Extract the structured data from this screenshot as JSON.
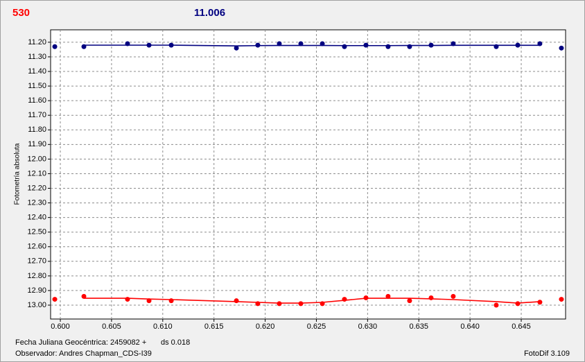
{
  "header": {
    "left_value": "530",
    "right_value": "11.006"
  },
  "footer": {
    "date_label": "Fecha Juliana Geocéntrica: 2459082 +",
    "ds": "ds 0.018",
    "observer": "Observador: Andres Chapman_CDS-I39",
    "software": "FotoDif 3.109"
  },
  "chart_data": {
    "type": "scatter",
    "y_label": "Fotometría absoluta",
    "grid": true,
    "x": [
      0.59946,
      0.6023,
      0.60656,
      0.60866,
      0.61083,
      0.61719,
      0.61928,
      0.62138,
      0.62348,
      0.62558,
      0.62774,
      0.62984,
      0.632,
      0.6341,
      0.6362,
      0.63836,
      0.64256,
      0.64466,
      0.64682,
      0.64892
    ],
    "series": [
      {
        "color": "#000080",
        "values": [
          11.23,
          11.23,
          11.21,
          11.22,
          11.22,
          11.24,
          11.22,
          11.21,
          11.21,
          11.21,
          11.23,
          11.22,
          11.23,
          11.23,
          11.22,
          11.21,
          11.23,
          11.22,
          11.21,
          11.24
        ],
        "fit": [
          null,
          11.22,
          11.22,
          11.22,
          11.22,
          11.225,
          11.223,
          11.222,
          11.222,
          11.222,
          11.223,
          11.223,
          11.223,
          11.222,
          11.222,
          11.221,
          11.221,
          11.221,
          11.221,
          null
        ]
      },
      {
        "color": "#ff0000",
        "values": [
          12.96,
          12.94,
          12.96,
          12.97,
          12.97,
          12.97,
          12.99,
          12.99,
          12.99,
          12.99,
          12.96,
          12.95,
          12.94,
          12.97,
          12.95,
          12.94,
          13.0,
          12.99,
          12.98,
          12.96
        ],
        "fit": [
          null,
          12.953,
          12.953,
          12.958,
          12.962,
          12.976,
          12.981,
          12.986,
          12.986,
          12.981,
          12.967,
          12.953,
          12.953,
          12.953,
          12.957,
          12.962,
          12.976,
          12.986,
          12.976,
          null
        ]
      }
    ],
    "xlim": [
      0.59905,
      0.64933
    ],
    "ylim": [
      13.095,
      11.115
    ],
    "xticks": [
      {
        "value": 0.6,
        "label": "0.600"
      },
      {
        "value": 0.605,
        "label": "0.605"
      },
      {
        "value": 0.61,
        "label": "0.610"
      },
      {
        "value": 0.615,
        "label": "0.615"
      },
      {
        "value": 0.62,
        "label": "0.620"
      },
      {
        "value": 0.625,
        "label": "0.625"
      },
      {
        "value": 0.63,
        "label": "0.630"
      },
      {
        "value": 0.635,
        "label": "0.635"
      },
      {
        "value": 0.64,
        "label": "0.640"
      },
      {
        "value": 0.645,
        "label": "0.645"
      }
    ],
    "yticks": [
      {
        "value": 11.2,
        "label": "11.20"
      },
      {
        "value": 11.3,
        "label": "11.30"
      },
      {
        "value": 11.4,
        "label": "11.40"
      },
      {
        "value": 11.5,
        "label": "11.50"
      },
      {
        "value": 11.6,
        "label": "11.60"
      },
      {
        "value": 11.7,
        "label": "11.70"
      },
      {
        "value": 11.8,
        "label": "11.80"
      },
      {
        "value": 11.9,
        "label": "11.90"
      },
      {
        "value": 12.0,
        "label": "12.00"
      },
      {
        "value": 12.1,
        "label": "12.10"
      },
      {
        "value": 12.2,
        "label": "12.20"
      },
      {
        "value": 12.3,
        "label": "12.30"
      },
      {
        "value": 12.4,
        "label": "12.40"
      },
      {
        "value": 12.5,
        "label": "12.50"
      },
      {
        "value": 12.6,
        "label": "12.60"
      },
      {
        "value": 12.7,
        "label": "12.70"
      },
      {
        "value": 12.8,
        "label": "12.80"
      },
      {
        "value": 12.9,
        "label": "12.90"
      },
      {
        "value": 13.0,
        "label": "13.00"
      }
    ]
  }
}
